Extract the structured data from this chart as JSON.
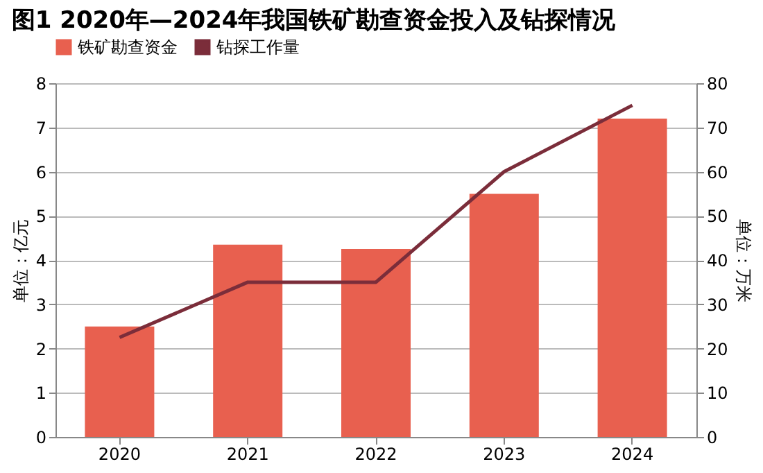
{
  "chart_data": {
    "type": "bar",
    "title": "图1 2020年—2024年我国铁矿勘查资金投入及钻探情况",
    "categories": [
      "2020",
      "2021",
      "2022",
      "2023",
      "2024"
    ],
    "series": [
      {
        "name": "铁矿勘查资金",
        "color": "#e8604f",
        "values": [
          2.5,
          4.35,
          4.25,
          5.5,
          7.2
        ]
      },
      {
        "name": "钻探工作量",
        "type": "line",
        "axis": "y2",
        "color": "#7b2d3a",
        "values": [
          22.5,
          35,
          35,
          60,
          75
        ]
      }
    ],
    "ylabel": "单位：亿元",
    "y2label": "单位：万米",
    "ylim": [
      0,
      8
    ],
    "yticks": [
      0,
      1,
      2,
      3,
      4,
      5,
      6,
      7,
      8
    ],
    "y2lim": [
      0,
      80
    ],
    "y2ticks": [
      0,
      10,
      20,
      30,
      40,
      50,
      60,
      70,
      80
    ],
    "grid": "y",
    "legend": "top"
  }
}
